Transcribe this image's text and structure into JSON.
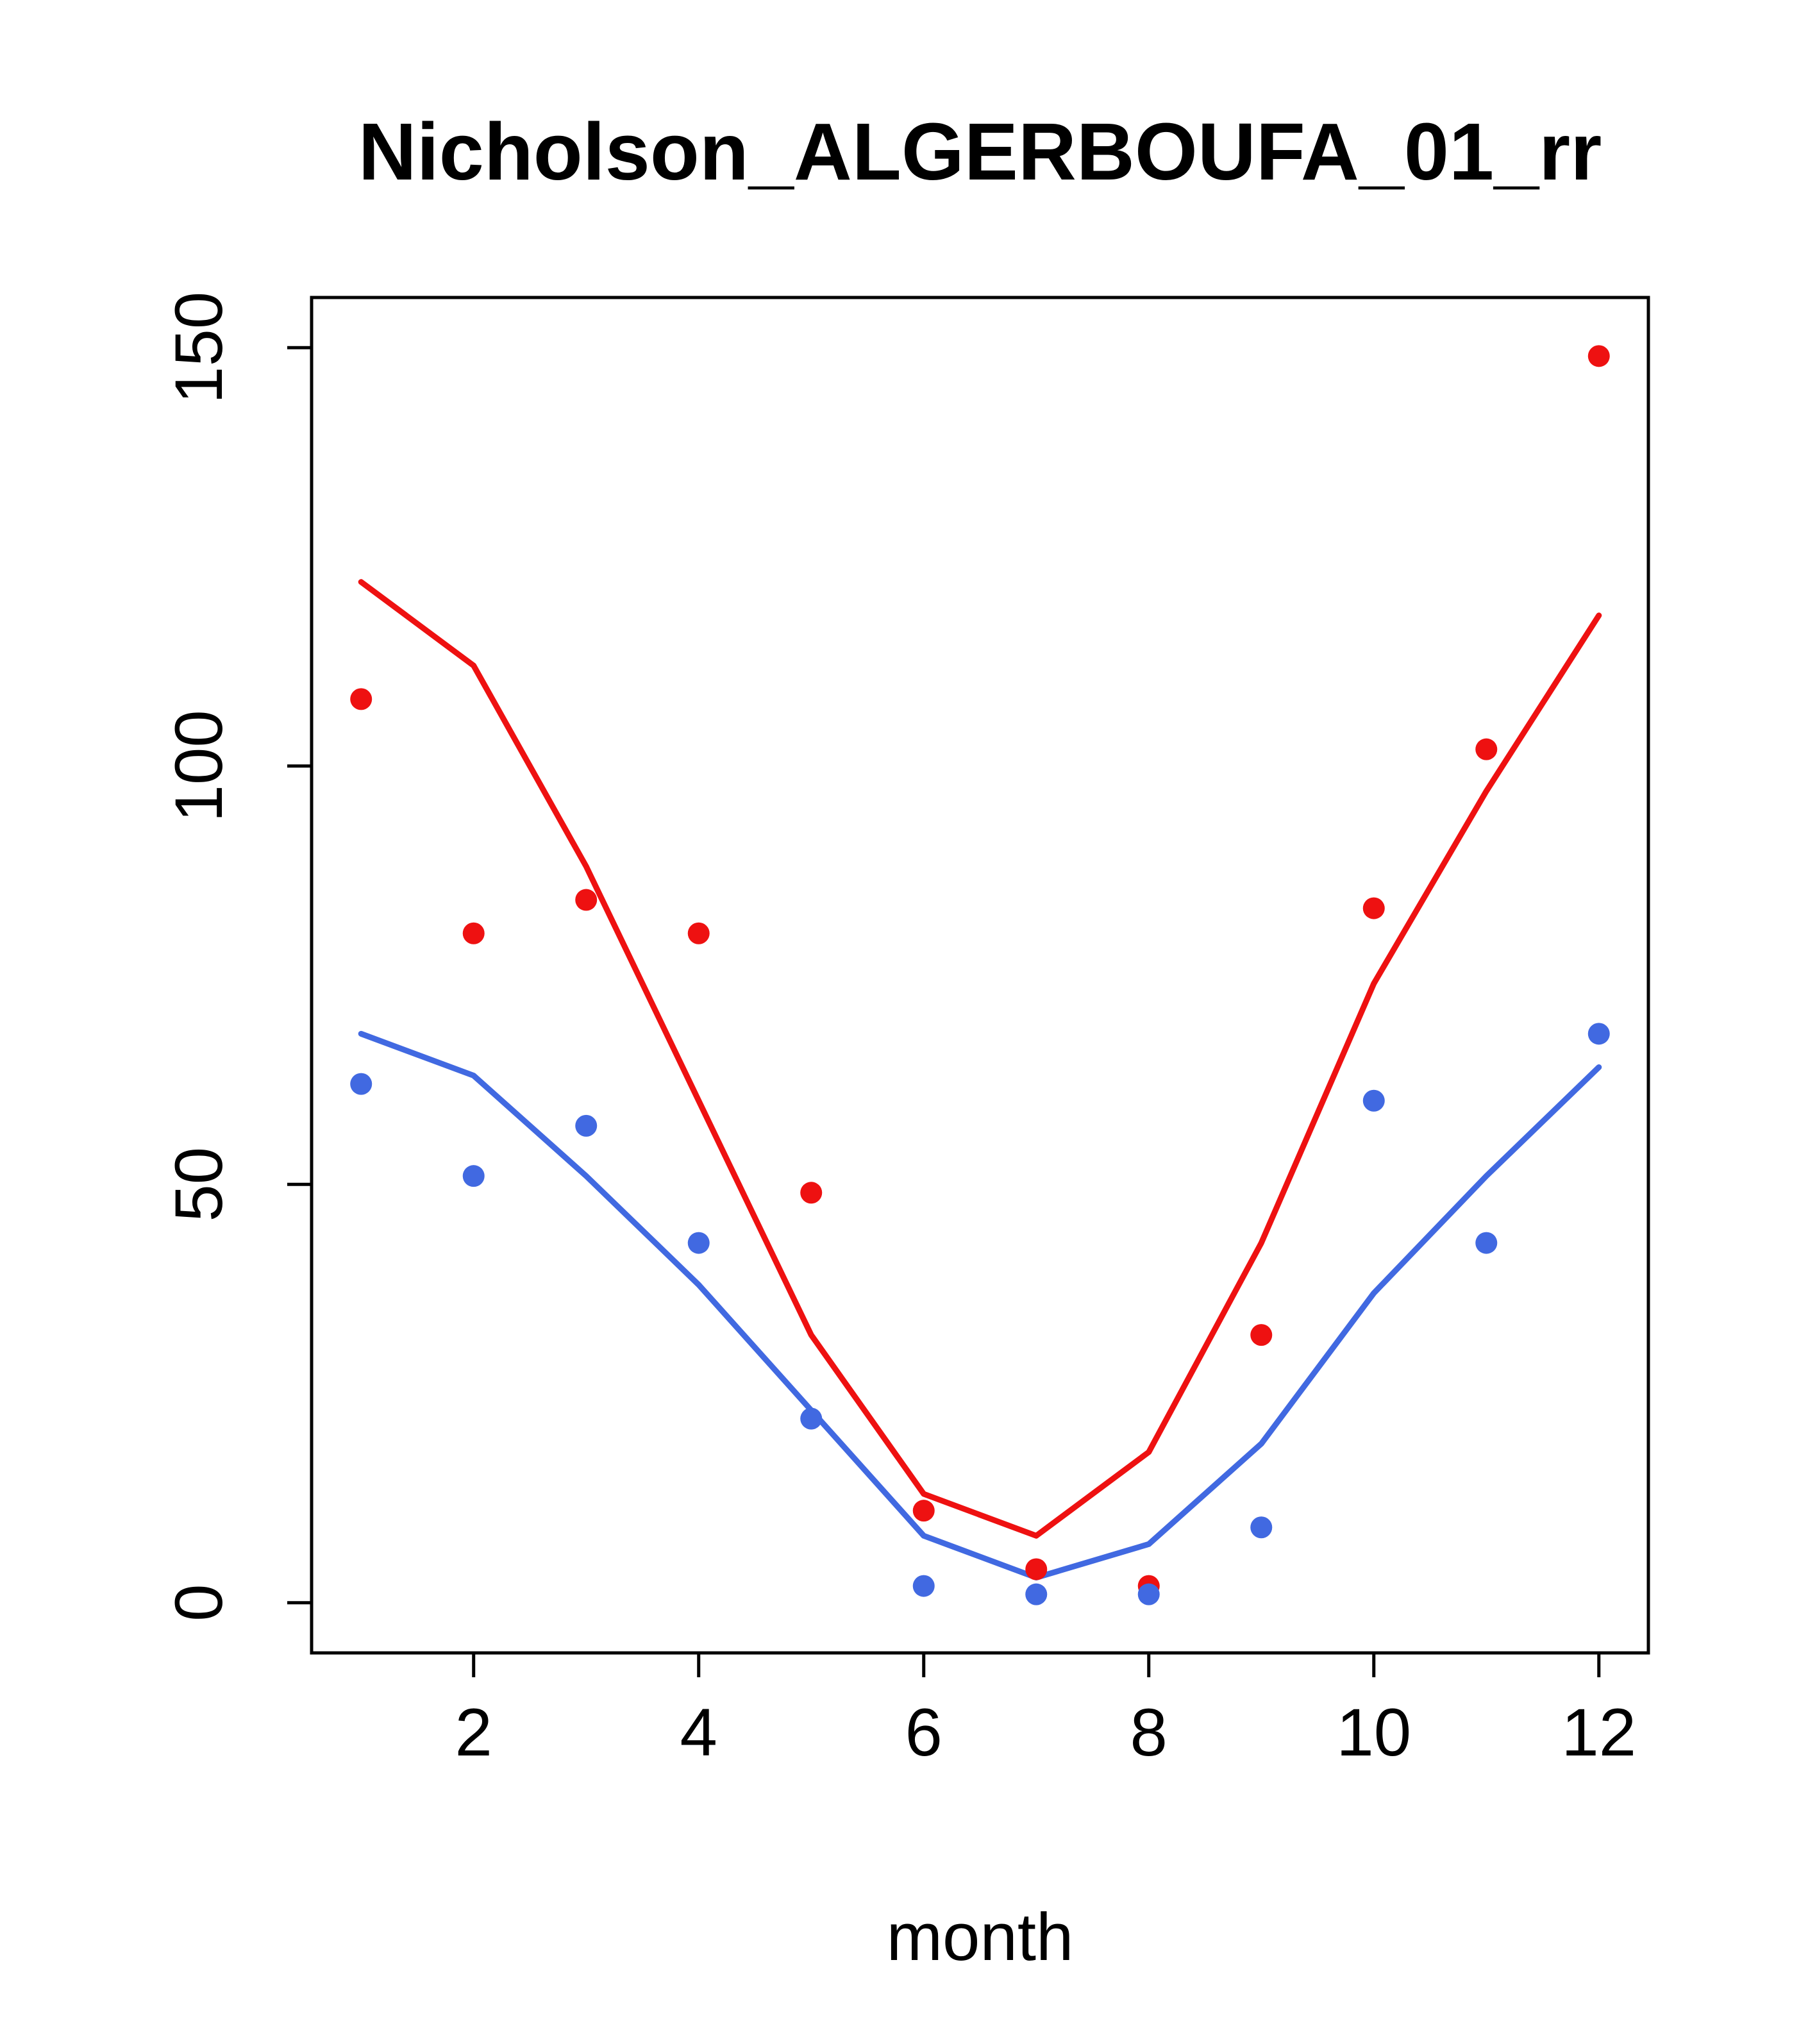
{
  "figure": {
    "title": "Nicholson_ALGERBOUFA_01_rr",
    "xlabel": "month"
  },
  "colors": {
    "red": "#ee1111",
    "blue": "#4169e1",
    "axis": "#000000",
    "background": "#ffffff"
  },
  "chart_data": {
    "type": "scatter",
    "title": "Nicholson_ALGERBOUFA_01_rr",
    "xlabel": "month",
    "ylabel": "",
    "x": [
      1,
      2,
      3,
      4,
      5,
      6,
      7,
      8,
      9,
      10,
      11,
      12
    ],
    "x_ticks": [
      2,
      4,
      6,
      8,
      10,
      12
    ],
    "y_ticks": [
      0,
      50,
      100,
      150
    ],
    "xlim": [
      0.56,
      12.44
    ],
    "ylim": [
      -6,
      156
    ],
    "grid": false,
    "legend": null,
    "series": [
      {
        "name": "red-points",
        "style": "points",
        "color": "#ee1111",
        "values": [
          108,
          80,
          84,
          80,
          49,
          11,
          4,
          2,
          32,
          83,
          102,
          149
        ]
      },
      {
        "name": "red-line",
        "style": "line",
        "color": "#ee1111",
        "values": [
          122,
          112,
          88,
          60,
          32,
          13,
          8,
          18,
          43,
          74,
          97,
          118
        ]
      },
      {
        "name": "blue-points",
        "style": "points",
        "color": "#4169e1",
        "values": [
          62,
          51,
          57,
          43,
          22,
          2,
          1,
          1,
          9,
          60,
          43,
          68
        ]
      },
      {
        "name": "blue-line",
        "style": "line",
        "color": "#4169e1",
        "values": [
          68,
          63,
          51,
          38,
          23,
          8,
          3,
          7,
          19,
          37,
          51,
          64
        ]
      }
    ]
  }
}
